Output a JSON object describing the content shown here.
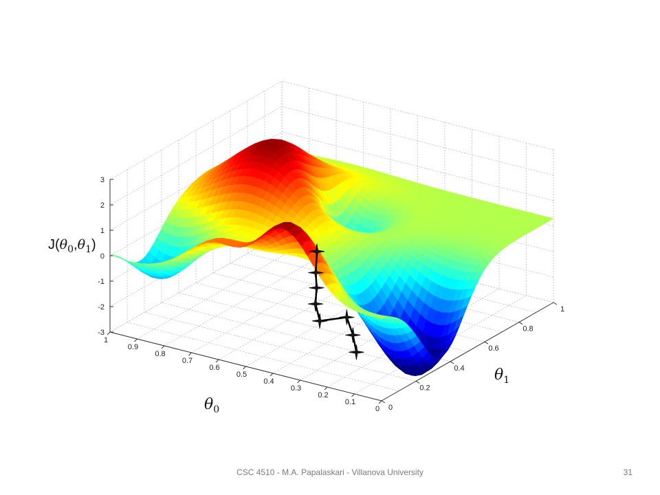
{
  "chart_data": {
    "type": "surface",
    "title": "",
    "zlabel_text": "J(",
    "zlabel_sym": "θ",
    "zlabel_sub0": "0",
    "zlabel_sep": ",",
    "zlabel_sub1": "1",
    "zlabel_close": ")",
    "xlabel_sym": "θ",
    "xlabel_sub": "0",
    "ylabel_sym": "θ",
    "ylabel_sub": "1",
    "x_ticks": [
      "0",
      "0.1",
      "0.2",
      "0.3",
      "0.4",
      "0.5",
      "0.6",
      "0.7",
      "0.8",
      "0.9",
      "1"
    ],
    "y_ticks": [
      "0",
      "0.2",
      "0.4",
      "0.6",
      "0.8",
      "1"
    ],
    "z_ticks": [
      "-3",
      "-2",
      "-1",
      "0",
      "1",
      "2",
      "3"
    ],
    "xlim": [
      0,
      1
    ],
    "ylim": [
      0,
      1
    ],
    "zlim": [
      -3,
      3
    ],
    "grid": true,
    "colormap": "jet",
    "descent_path": [
      {
        "theta0": 0.27,
        "theta1": 0.05,
        "J": 1.95
      },
      {
        "theta0": 0.28,
        "theta1": 0.06,
        "J": 1.05
      },
      {
        "theta0": 0.29,
        "theta1": 0.08,
        "J": 0.35
      },
      {
        "theta0": 0.3,
        "theta1": 0.09,
        "J": -0.35
      },
      {
        "theta0": 0.31,
        "theta1": 0.13,
        "J": -1.2
      },
      {
        "theta0": 0.28,
        "theta1": 0.24,
        "J": -1.4
      },
      {
        "theta0": 0.27,
        "theta1": 0.26,
        "J": -2.15
      },
      {
        "theta0": 0.27,
        "theta1": 0.28,
        "J": -2.9
      }
    ]
  },
  "footer": {
    "text": "CSC 4510 - M.A. Papalaskari - Villanova University",
    "page": "31"
  },
  "colors": {
    "background": "#ffffff",
    "grid": "#b4b4b4",
    "axis": "#303030",
    "path": "#000000",
    "footer": "#7a7a7a"
  }
}
